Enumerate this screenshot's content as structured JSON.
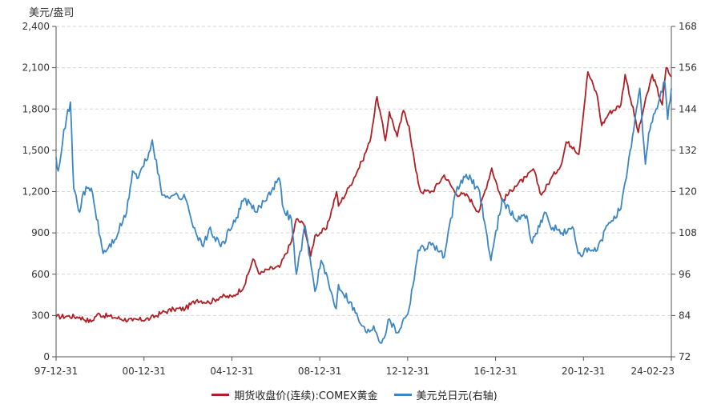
{
  "chart_data": {
    "type": "line",
    "unit_label": "美元/盎司",
    "x_ticks": [
      "97-12-31",
      "00-12-31",
      "04-12-31",
      "08-12-31",
      "12-12-31",
      "16-12-31",
      "20-12-31",
      "24-02-23"
    ],
    "x_range": [
      "1997-12-31",
      "2024-02-23"
    ],
    "y_left": {
      "ticks": [
        "0",
        "300",
        "600",
        "900",
        "1,200",
        "1,500",
        "1,800",
        "2,100",
        "2,400"
      ],
      "min": 0,
      "max": 2400
    },
    "y_right": {
      "ticks": [
        "72",
        "84",
        "96",
        "108",
        "120",
        "132",
        "144",
        "156",
        "168"
      ],
      "min": 72,
      "max": 168
    },
    "grid": "horizontal-dashed",
    "legend_position": "bottom",
    "series": [
      {
        "name": "期货收盘价(连续):COMEX黄金",
        "axis": "left",
        "color": "#b01f24",
        "points": [
          [
            "1997-12-31",
            290
          ],
          [
            "1998-06-30",
            295
          ],
          [
            "1999-01-01",
            288
          ],
          [
            "1999-07-01",
            255
          ],
          [
            "1999-10-01",
            310
          ],
          [
            "2000-06-30",
            285
          ],
          [
            "2001-04-01",
            262
          ],
          [
            "2001-12-31",
            278
          ],
          [
            "2002-06-30",
            320
          ],
          [
            "2002-12-31",
            345
          ],
          [
            "2003-06-30",
            350
          ],
          [
            "2003-12-31",
            415
          ],
          [
            "2004-06-30",
            395
          ],
          [
            "2004-12-31",
            437
          ],
          [
            "2005-06-30",
            435
          ],
          [
            "2005-12-31",
            515
          ],
          [
            "2006-05-15",
            710
          ],
          [
            "2006-09-01",
            600
          ],
          [
            "2006-12-31",
            635
          ],
          [
            "2007-06-30",
            650
          ],
          [
            "2007-12-31",
            835
          ],
          [
            "2008-03-17",
            1000
          ],
          [
            "2008-07-15",
            960
          ],
          [
            "2008-10-24",
            730
          ],
          [
            "2008-12-31",
            880
          ],
          [
            "2009-06-30",
            930
          ],
          [
            "2009-12-01",
            1200
          ],
          [
            "2009-12-31",
            1095
          ],
          [
            "2010-06-30",
            1245
          ],
          [
            "2010-12-31",
            1420
          ],
          [
            "2011-05-01",
            1560
          ],
          [
            "2011-08-22",
            1890
          ],
          [
            "2011-12-29",
            1570
          ],
          [
            "2012-03-01",
            1780
          ],
          [
            "2012-06-30",
            1600
          ],
          [
            "2012-10-05",
            1790
          ],
          [
            "2012-12-31",
            1675
          ],
          [
            "2013-04-15",
            1350
          ],
          [
            "2013-06-28",
            1200
          ],
          [
            "2013-12-31",
            1202
          ],
          [
            "2014-06-30",
            1320
          ],
          [
            "2014-12-31",
            1185
          ],
          [
            "2015-06-30",
            1170
          ],
          [
            "2015-12-17",
            1050
          ],
          [
            "2016-07-06",
            1370
          ],
          [
            "2016-12-15",
            1130
          ],
          [
            "2017-06-30",
            1240
          ],
          [
            "2017-12-31",
            1305
          ],
          [
            "2018-04-11",
            1365
          ],
          [
            "2018-08-16",
            1175
          ],
          [
            "2018-12-31",
            1283
          ],
          [
            "2019-06-30",
            1410
          ],
          [
            "2019-09-04",
            1560
          ],
          [
            "2019-12-31",
            1523
          ],
          [
            "2020-03-19",
            1470
          ],
          [
            "2020-08-06",
            2070
          ],
          [
            "2020-12-31",
            1895
          ],
          [
            "2021-03-08",
            1680
          ],
          [
            "2021-06-30",
            1770
          ],
          [
            "2021-12-31",
            1830
          ],
          [
            "2022-03-08",
            2050
          ],
          [
            "2022-09-28",
            1630
          ],
          [
            "2022-12-31",
            1825
          ],
          [
            "2023-05-04",
            2050
          ],
          [
            "2023-10-05",
            1830
          ],
          [
            "2023-12-04",
            2100
          ],
          [
            "2024-02-23",
            2035
          ]
        ]
      },
      {
        "name": "美元兑日元(右轴)",
        "axis": "right",
        "color": "#3b86c4",
        "points": [
          [
            "1997-12-31",
            130
          ],
          [
            "1998-02-01",
            126
          ],
          [
            "1998-05-01",
            138
          ],
          [
            "1998-08-10",
            146
          ],
          [
            "1998-10-01",
            121
          ],
          [
            "1998-12-31",
            114
          ],
          [
            "1999-03-01",
            120
          ],
          [
            "1999-06-30",
            121
          ],
          [
            "1999-12-31",
            102
          ],
          [
            "2000-06-30",
            106
          ],
          [
            "2000-12-31",
            114
          ],
          [
            "2001-04-01",
            126
          ],
          [
            "2001-06-30",
            124
          ],
          [
            "2001-12-31",
            132
          ],
          [
            "2002-02-01",
            135
          ],
          [
            "2002-06-30",
            119
          ],
          [
            "2002-12-31",
            119
          ],
          [
            "2003-06-30",
            118
          ],
          [
            "2003-12-31",
            107
          ],
          [
            "2004-04-01",
            104
          ],
          [
            "2004-06-30",
            109
          ],
          [
            "2004-12-31",
            104
          ],
          [
            "2005-06-30",
            110
          ],
          [
            "2005-12-31",
            118
          ],
          [
            "2006-06-30",
            114
          ],
          [
            "2006-12-31",
            119
          ],
          [
            "2007-06-22",
            124
          ],
          [
            "2007-09-01",
            115
          ],
          [
            "2007-12-31",
            112
          ],
          [
            "2008-03-17",
            96
          ],
          [
            "2008-08-01",
            110
          ],
          [
            "2008-12-31",
            91
          ],
          [
            "2009-04-06",
            100
          ],
          [
            "2009-11-27",
            86
          ],
          [
            "2009-12-31",
            93
          ],
          [
            "2010-06-30",
            88
          ],
          [
            "2010-12-31",
            81
          ],
          [
            "2011-03-17",
            79
          ],
          [
            "2011-07-01",
            81
          ],
          [
            "2011-10-31",
            76
          ],
          [
            "2012-03-01",
            83
          ],
          [
            "2012-06-30",
            79
          ],
          [
            "2012-12-31",
            86
          ],
          [
            "2013-05-22",
            103
          ],
          [
            "2013-12-31",
            105
          ],
          [
            "2014-06-30",
            101
          ],
          [
            "2014-12-31",
            120
          ],
          [
            "2015-06-05",
            125
          ],
          [
            "2015-12-31",
            120
          ],
          [
            "2016-06-24",
            100
          ],
          [
            "2016-12-15",
            118
          ],
          [
            "2017-06-30",
            112
          ],
          [
            "2017-12-31",
            113
          ],
          [
            "2018-03-26",
            105
          ],
          [
            "2018-10-04",
            114
          ],
          [
            "2018-12-31",
            110
          ],
          [
            "2019-06-30",
            108
          ],
          [
            "2019-12-31",
            109
          ],
          [
            "2020-03-09",
            102
          ],
          [
            "2020-12-31",
            103
          ],
          [
            "2021-06-30",
            111
          ],
          [
            "2021-12-31",
            115
          ],
          [
            "2022-03-28",
            124
          ],
          [
            "2022-06-30",
            136
          ],
          [
            "2022-10-21",
            150
          ],
          [
            "2023-01-16",
            128
          ],
          [
            "2023-03-08",
            137
          ],
          [
            "2023-06-30",
            144
          ],
          [
            "2023-11-13",
            152
          ],
          [
            "2023-12-28",
            141
          ],
          [
            "2024-02-23",
            150
          ]
        ]
      }
    ]
  }
}
